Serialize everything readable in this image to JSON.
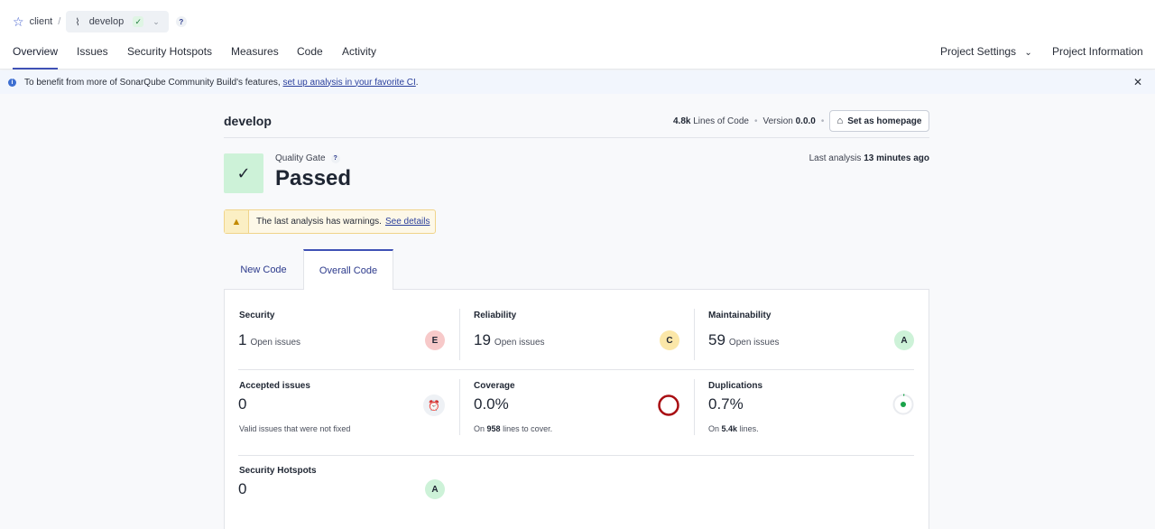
{
  "breadcrumb": {
    "project": "client",
    "branch": "develop"
  },
  "nav": {
    "tabs": [
      {
        "label": "Overview"
      },
      {
        "label": "Issues"
      },
      {
        "label": "Security Hotspots"
      },
      {
        "label": "Measures"
      },
      {
        "label": "Code"
      },
      {
        "label": "Activity"
      }
    ],
    "project_settings": "Project Settings",
    "project_information": "Project Information"
  },
  "banner": {
    "text": "To benefit from more of SonarQube Community Build's features,",
    "link": "set up analysis in your favorite CI",
    "suffix": "."
  },
  "header": {
    "branch_title": "develop",
    "lines_value": "4.8k",
    "lines_label": "Lines of Code",
    "version_label": "Version",
    "version_value": "0.0.0",
    "homepage_button": "Set as homepage"
  },
  "quality_gate": {
    "label": "Quality Gate",
    "status": "Passed",
    "last_analysis_label": "Last analysis",
    "last_analysis_value": "13 minutes ago"
  },
  "warning": {
    "text": "The last analysis has warnings.",
    "link": "See details"
  },
  "code_tabs": {
    "new": "New Code",
    "overall": "Overall Code"
  },
  "metrics": {
    "security": {
      "title": "Security",
      "value": "1",
      "unit": "Open issues",
      "grade": "E"
    },
    "reliability": {
      "title": "Reliability",
      "value": "19",
      "unit": "Open issues",
      "grade": "C"
    },
    "maintainability": {
      "title": "Maintainability",
      "value": "59",
      "unit": "Open issues",
      "grade": "A"
    },
    "accepted": {
      "title": "Accepted issues",
      "value": "0",
      "sub": "Valid issues that were not fixed"
    },
    "coverage": {
      "title": "Coverage",
      "value": "0.0%",
      "sub_prefix": "On",
      "sub_value": "958",
      "sub_suffix": "lines to cover."
    },
    "duplications": {
      "title": "Duplications",
      "value": "0.7%",
      "sub_prefix": "On",
      "sub_value": "5.4k",
      "sub_suffix": "lines."
    },
    "hotspots": {
      "title": "Security Hotspots",
      "value": "0",
      "grade": "A"
    }
  },
  "colors": {
    "accent": "#3f51b5",
    "grade_e": "#f7c9c9",
    "grade_c": "#fbe7a8",
    "grade_a": "#cdf2d8",
    "coverage_ring": "#a80d12",
    "duplication_dot": "#1aa34a"
  }
}
